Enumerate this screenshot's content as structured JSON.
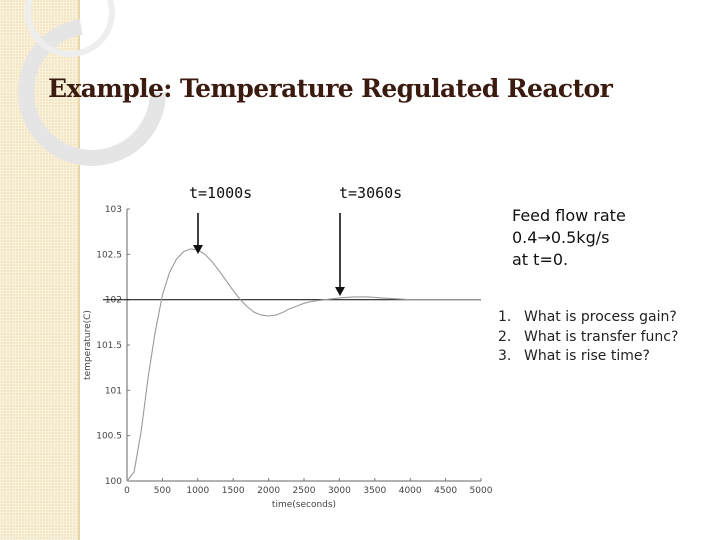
{
  "slide": {
    "title": "Example: Temperature Regulated Reactor",
    "annotations": [
      "t=1000s",
      "t=3060s"
    ],
    "feed_note": [
      "Feed flow rate",
      "0.4→0.5kg/s",
      "at t=0."
    ],
    "questions": [
      {
        "num": "1.",
        "text": "What is process gain?"
      },
      {
        "num": "2.",
        "text": "What is transfer func?"
      },
      {
        "num": "3.",
        "text": "What is rise time?"
      }
    ]
  },
  "chart_data": {
    "type": "line",
    "xlabel": "time(seconds)",
    "ylabel": "temperature(C)",
    "xlim": [
      0,
      5000
    ],
    "ylim": [
      100,
      103
    ],
    "x_ticks": [
      0,
      500,
      1000,
      1500,
      2000,
      2500,
      3000,
      3500,
      4000,
      4500,
      5000
    ],
    "y_ticks": [
      100,
      100.5,
      101,
      101.5,
      102,
      102.5,
      103
    ],
    "y_tick_labels": [
      "100",
      "100.5",
      "101",
      "101.5",
      "102",
      "102.5",
      "103"
    ],
    "grid": false,
    "setpoint": 102,
    "series": [
      {
        "color": "#9a9a9a",
        "x": [
          0,
          100,
          200,
          300,
          400,
          500,
          600,
          700,
          800,
          900,
          1000,
          1100,
          1200,
          1300,
          1400,
          1500,
          1600,
          1700,
          1800,
          1900,
          2000,
          2100,
          2200,
          2300,
          2400,
          2500,
          2600,
          2700,
          2800,
          2900,
          3000,
          3200,
          3400,
          3600,
          3800,
          4000,
          4200,
          4400,
          4600,
          4800,
          5000
        ],
        "y": [
          100,
          100.1,
          100.55,
          101.15,
          101.65,
          102.05,
          102.3,
          102.45,
          102.53,
          102.56,
          102.55,
          102.5,
          102.42,
          102.32,
          102.21,
          102.1,
          102.0,
          101.92,
          101.86,
          101.83,
          101.82,
          101.83,
          101.86,
          101.9,
          101.93,
          101.96,
          101.98,
          101.99,
          102.0,
          102.01,
          102.02,
          102.03,
          102.03,
          102.02,
          102.01,
          102.0,
          102.0,
          102.0,
          102.0,
          102.0,
          102.0
        ]
      }
    ]
  }
}
